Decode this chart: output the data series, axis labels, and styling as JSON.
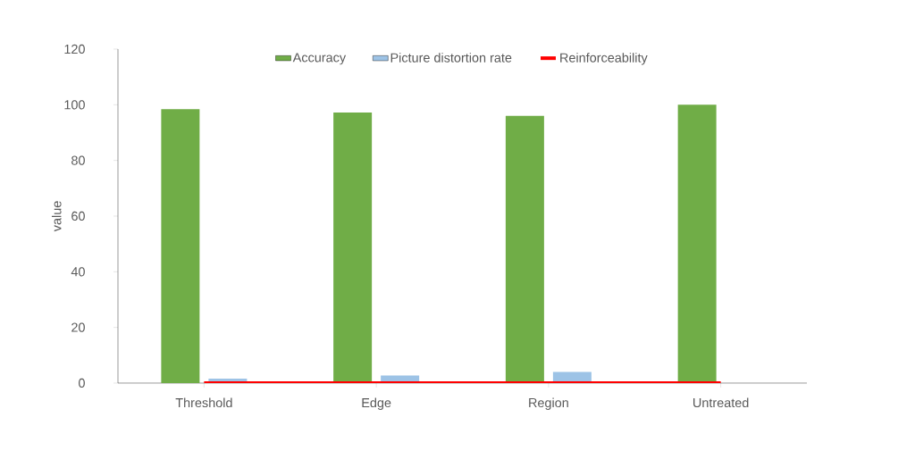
{
  "chart_data": {
    "type": "bar",
    "ylabel": "value",
    "categories": [
      "Threshold",
      "Edge",
      "Region",
      "Untreated"
    ],
    "series": [
      {
        "name": "Accuracy",
        "color": "#70ad47",
        "values": [
          98.4,
          97.2,
          96.0,
          100.0
        ]
      },
      {
        "name": "Picture distortion rate",
        "color": "#9dc3e6",
        "values": [
          1.6,
          2.7,
          4.0,
          0
        ]
      },
      {
        "name": "Reinforceability",
        "type": "line",
        "color": "#ff0000",
        "values": [
          0,
          0,
          0,
          0
        ]
      }
    ],
    "ylim": [
      0,
      120
    ],
    "yticks": [
      0,
      20,
      40,
      60,
      80,
      100,
      120
    ],
    "grid": false,
    "legend": "top",
    "marker": "none",
    "line_style": "solid"
  }
}
